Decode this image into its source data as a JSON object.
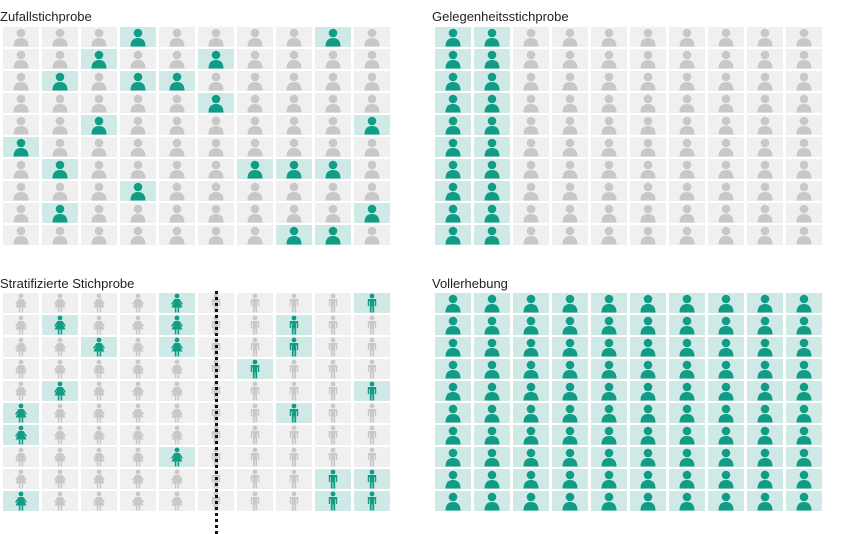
{
  "colors": {
    "selected_icon": "#119c86",
    "selected_bg": "#cfeae6",
    "unselected_icon": "#c8c8c8",
    "unselected_bg": "#f0f0f0"
  },
  "grid": {
    "rows": 10,
    "cols": 10
  },
  "panels": [
    {
      "id": "random",
      "title": "Zufallstichprobe",
      "icon": "person-icon",
      "selected": [
        [
          0,
          3
        ],
        [
          0,
          8
        ],
        [
          1,
          2
        ],
        [
          1,
          5
        ],
        [
          2,
          1
        ],
        [
          2,
          3
        ],
        [
          2,
          4
        ],
        [
          3,
          5
        ],
        [
          4,
          2
        ],
        [
          4,
          9
        ],
        [
          5,
          0
        ],
        [
          6,
          1
        ],
        [
          6,
          6
        ],
        [
          6,
          7
        ],
        [
          6,
          8
        ],
        [
          7,
          3
        ],
        [
          8,
          1
        ],
        [
          8,
          9
        ],
        [
          9,
          7
        ],
        [
          9,
          8
        ]
      ]
    },
    {
      "id": "convenience",
      "title": "Gelegenheitsstichprobe",
      "icon": "person-icon",
      "selected": [
        [
          0,
          0
        ],
        [
          0,
          1
        ],
        [
          1,
          0
        ],
        [
          1,
          1
        ],
        [
          2,
          0
        ],
        [
          2,
          1
        ],
        [
          3,
          0
        ],
        [
          3,
          1
        ],
        [
          4,
          0
        ],
        [
          4,
          1
        ],
        [
          5,
          0
        ],
        [
          5,
          1
        ],
        [
          6,
          0
        ],
        [
          6,
          1
        ],
        [
          7,
          0
        ],
        [
          7,
          1
        ],
        [
          8,
          0
        ],
        [
          8,
          1
        ],
        [
          9,
          0
        ],
        [
          9,
          1
        ]
      ]
    },
    {
      "id": "stratified",
      "title": "Stratifizierte Stichprobe",
      "icon": "gender-icons",
      "groups": [
        "female-icon",
        "female-icon",
        "female-icon",
        "female-icon",
        "female-icon",
        "male-icon",
        "male-icon",
        "male-icon",
        "male-icon",
        "male-icon"
      ],
      "selected": [
        [
          0,
          4
        ],
        [
          0,
          9
        ],
        [
          1,
          1
        ],
        [
          1,
          4
        ],
        [
          1,
          7
        ],
        [
          2,
          2
        ],
        [
          2,
          4
        ],
        [
          2,
          7
        ],
        [
          3,
          6
        ],
        [
          4,
          1
        ],
        [
          4,
          9
        ],
        [
          5,
          0
        ],
        [
          5,
          7
        ],
        [
          6,
          0
        ],
        [
          7,
          4
        ],
        [
          8,
          8
        ],
        [
          8,
          9
        ],
        [
          9,
          0
        ],
        [
          9,
          8
        ],
        [
          9,
          9
        ]
      ]
    },
    {
      "id": "census",
      "title": "Vollerhebung",
      "icon": "person-icon",
      "selected": "all"
    }
  ]
}
